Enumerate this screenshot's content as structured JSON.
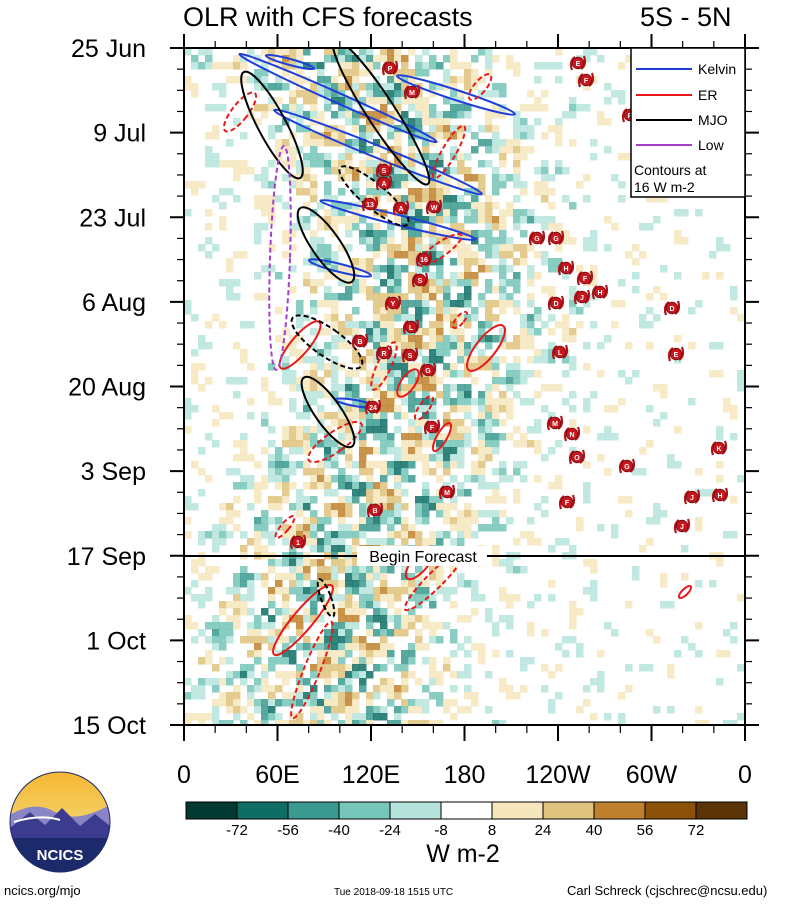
{
  "header": {
    "title": "OLR with CFS forecasts",
    "region": "5S - 5N"
  },
  "chart_data": {
    "type": "heatmap",
    "title": "OLR with CFS forecasts",
    "y_ticks": [
      "25 Jun",
      "9 Jul",
      "23 Jul",
      "6 Aug",
      "20 Aug",
      "3 Sep",
      "17 Sep",
      "1 Oct",
      "15 Oct"
    ],
    "x_ticks": [
      "0",
      "60E",
      "120E",
      "180",
      "120W",
      "60W",
      "0"
    ],
    "xlim": [
      "0",
      "0"
    ],
    "ylim": [
      "25 Jun",
      "15 Oct"
    ],
    "forecast_label": "Begin Forecast",
    "forecast_date": "17 Sep",
    "legend": [
      {
        "label": "Kelvin",
        "color": "#1f3fd8"
      },
      {
        "label": "ER",
        "color": "#e8191a"
      },
      {
        "label": "MJO",
        "color": "#000000"
      },
      {
        "label": "Low",
        "color": "#a340d0"
      }
    ],
    "contour_note_line1": "Contours at",
    "contour_note_line2": "16 W m-2",
    "colorbar": {
      "ticks": [
        "-72",
        "-56",
        "-40",
        "-24",
        "-8",
        "8",
        "24",
        "40",
        "56",
        "72"
      ],
      "colors": [
        "#01382f",
        "#0e6e66",
        "#3b9a8f",
        "#76c6b9",
        "#b6e4dc",
        "#ffffff",
        "#f6e6bd",
        "#dfc27d",
        "#bf812d",
        "#8c510a",
        "#5a3306"
      ],
      "unit": "W m-2"
    },
    "storms": [
      "P",
      "E",
      "F",
      "M",
      "S",
      "A",
      "13",
      "W",
      "16",
      "Y",
      "L",
      "B",
      "R",
      "G",
      "24",
      "D",
      "H",
      "J",
      "K",
      "N",
      "O",
      "1"
    ],
    "logo_text": "NCICS"
  },
  "footer": {
    "left": "ncics.org/mjo",
    "middle": "Tue 2018-09-18 1515 UTC",
    "right": "Carl Schreck (cjschrec@ncsu.edu)"
  }
}
